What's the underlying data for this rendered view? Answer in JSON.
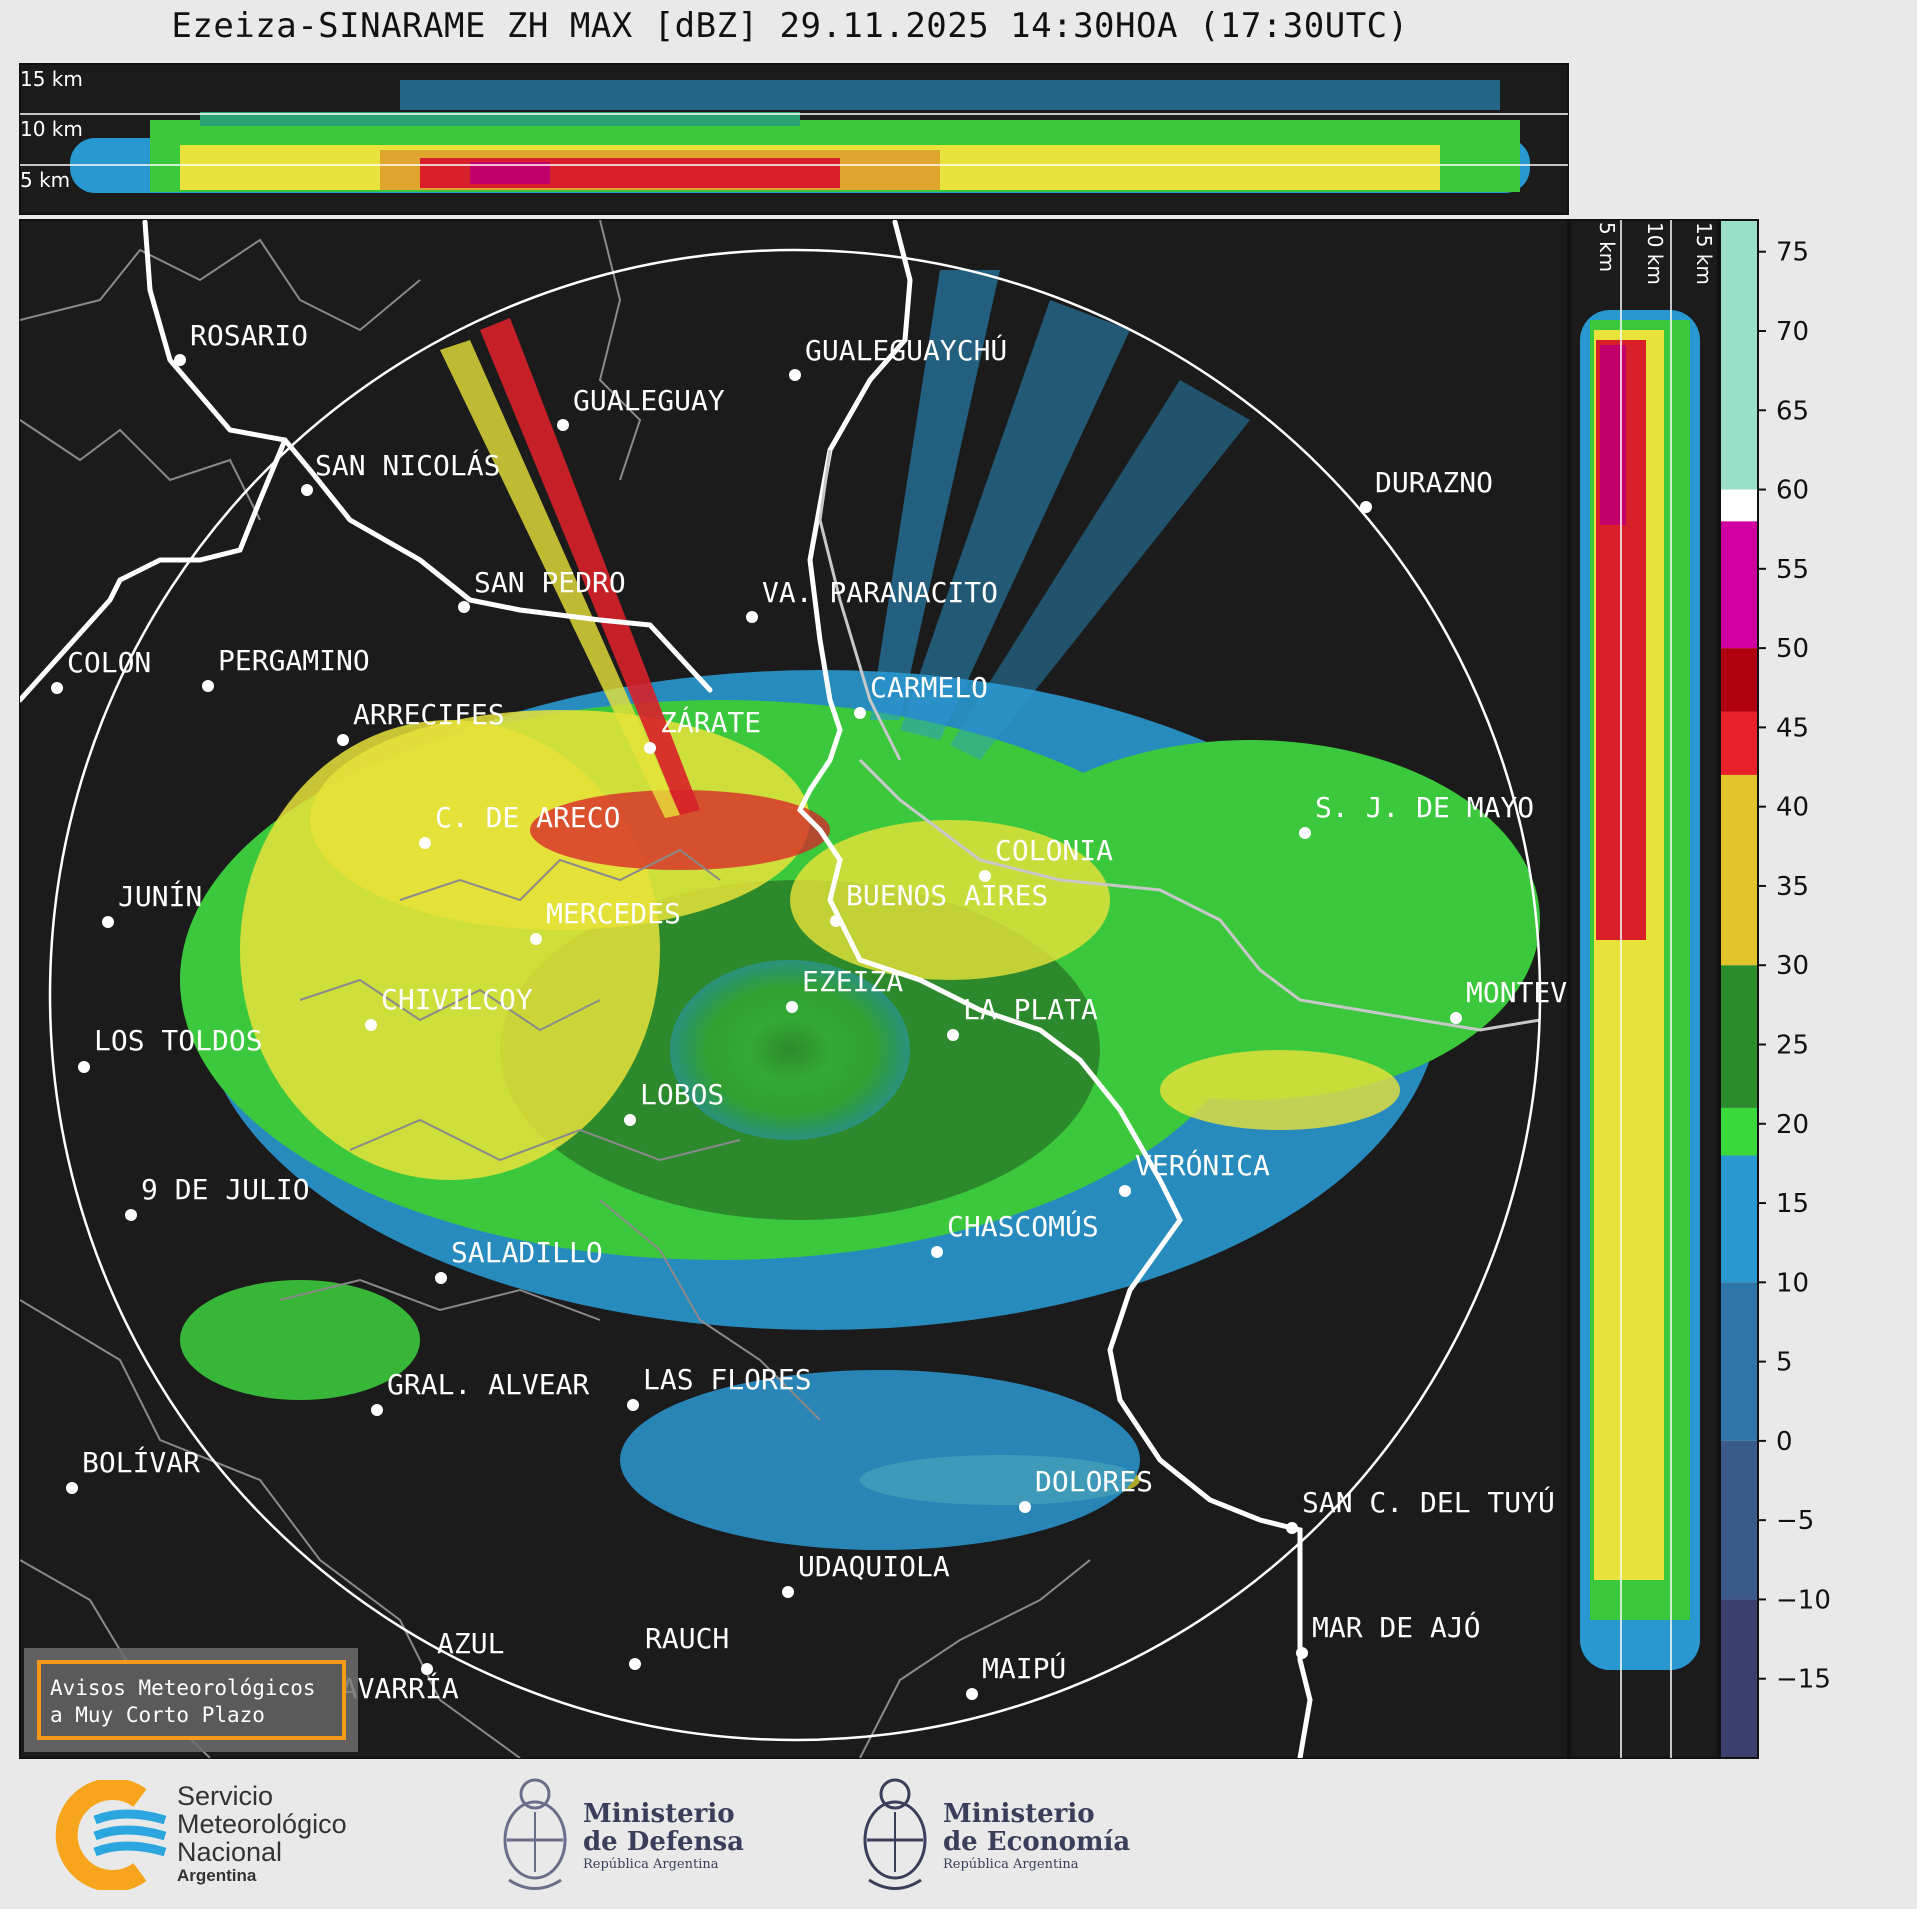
{
  "title": "Ezeiza-SINARAME ZH MAX [dBZ] 29.11.2025 14:30HOA (17:30UTC)",
  "top_panel": {
    "height_labels": [
      "15 km",
      "10 km",
      "5 km"
    ]
  },
  "side_panel": {
    "height_labels": [
      "5 km",
      "10 km",
      "15 km"
    ]
  },
  "colorbar": {
    "unit": "dBZ",
    "range": [
      -20,
      77
    ],
    "ticks": [
      "75",
      "70",
      "65",
      "60",
      "55",
      "50",
      "45",
      "40",
      "35",
      "30",
      "25",
      "20",
      "15",
      "10",
      "5",
      "0",
      "−5",
      "−10",
      "−15"
    ]
  },
  "cities": [
    {
      "name": "ROSARIO"
    },
    {
      "name": "GUALEGUAYCHÚ"
    },
    {
      "name": "GUALEGUAY"
    },
    {
      "name": "SAN NICOLÁS"
    },
    {
      "name": "DURAZNO"
    },
    {
      "name": "SAN PEDRO"
    },
    {
      "name": "VA. PARANACITO"
    },
    {
      "name": "COLON"
    },
    {
      "name": "PERGAMINO"
    },
    {
      "name": "CARMELO"
    },
    {
      "name": "ARRECIFES"
    },
    {
      "name": "ZÁRATE"
    },
    {
      "name": "C. DE ARECO"
    },
    {
      "name": "S. J. DE MAYO"
    },
    {
      "name": "COLONIA"
    },
    {
      "name": "JUNÍN"
    },
    {
      "name": "BUENOS AIRES"
    },
    {
      "name": "MERCEDES"
    },
    {
      "name": "EZEIZA"
    },
    {
      "name": "MONTEV"
    },
    {
      "name": "CHIVILCOY"
    },
    {
      "name": "LA PLATA"
    },
    {
      "name": "LOS TOLDOS"
    },
    {
      "name": "LOBOS"
    },
    {
      "name": "VERÓNICA"
    },
    {
      "name": "9 DE JULIO"
    },
    {
      "name": "CHASCOMÚS"
    },
    {
      "name": "SALADILLO"
    },
    {
      "name": "GRAL. ALVEAR"
    },
    {
      "name": "LAS FLORES"
    },
    {
      "name": "BOLÍVAR"
    },
    {
      "name": "DOLORES"
    },
    {
      "name": "SAN C. DEL TUYÚ"
    },
    {
      "name": "UDAQUIOLA"
    },
    {
      "name": "MAR DE AJÓ"
    },
    {
      "name": "AZUL"
    },
    {
      "name": "RAUCH"
    },
    {
      "name": "MAIPÚ"
    },
    {
      "name": "OLAVARRÍA"
    }
  ],
  "notice": {
    "line1": "Avisos Meteorológicos",
    "line2": "a Muy Corto Plazo"
  },
  "logos": {
    "smn": {
      "line1": "Servicio",
      "line2": "Meteorológico",
      "line3": "Nacional",
      "line4": "Argentina"
    },
    "defensa": {
      "line1": "Ministerio",
      "line2": "de Defensa",
      "line3": "República Argentina"
    },
    "economia": {
      "line1": "Ministerio",
      "line2": "de Economía",
      "line3": "República Argentina"
    }
  },
  "colors": {
    "background": "#1b1b1b",
    "frame": "#e9e9e9",
    "notice_border": "#f59a1b",
    "smn_orange": "#f7a51c",
    "smn_blue": "#2ba6de"
  }
}
